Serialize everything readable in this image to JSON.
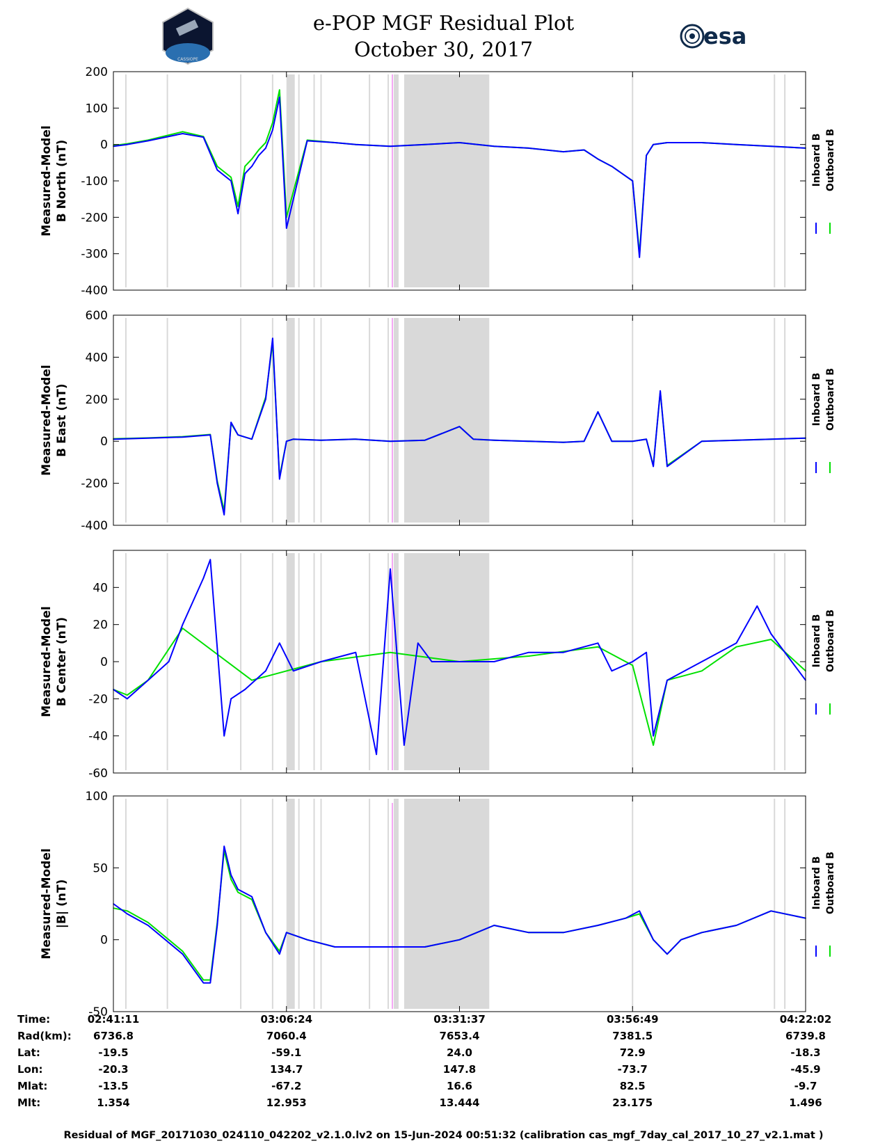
{
  "header": {
    "title_line1": "e-POP MGF Residual Plot",
    "title_line2": "October 30, 2017",
    "esa_logo_text": "esa",
    "cassiope_logo_text": "CASSIOPE"
  },
  "colors": {
    "inboard": "#0000ff",
    "outboard": "#00e000",
    "gap_band": "#d9d9d9",
    "marker": "#f4a8f4"
  },
  "legend": {
    "inboard": "Inboard B",
    "outboard": "Outboard B"
  },
  "chart_data": [
    {
      "type": "line",
      "ylabel_line1": "Measured-Model",
      "ylabel_line2": "B North (nT)",
      "ylim": [
        -400,
        200
      ],
      "yticks": [
        200,
        100,
        0,
        -100,
        -200,
        -300,
        -400
      ],
      "series": [
        {
          "name": "Inboard B",
          "x": [
            0,
            2,
            5,
            10,
            13,
            15,
            17,
            18,
            19,
            20,
            21,
            22,
            23,
            24,
            25,
            28,
            32,
            35,
            40,
            45,
            50,
            55,
            60,
            65,
            68,
            70,
            72,
            75,
            76,
            77,
            78,
            80,
            85,
            90,
            95,
            100
          ],
          "y": [
            -5,
            0,
            10,
            30,
            20,
            -70,
            -100,
            -190,
            -80,
            -60,
            -30,
            -10,
            40,
            130,
            -230,
            10,
            5,
            0,
            -5,
            0,
            5,
            -5,
            -10,
            -20,
            -15,
            -40,
            -60,
            -100,
            -310,
            -30,
            0,
            5,
            5,
            0,
            -5,
            -10
          ]
        },
        {
          "name": "Outboard B",
          "x": [
            0,
            2,
            5,
            10,
            13,
            15,
            17,
            18,
            19,
            20,
            21,
            22,
            23,
            24,
            25,
            28,
            32,
            35,
            40,
            45,
            50,
            55,
            60,
            65,
            68,
            70,
            72,
            75,
            76,
            77,
            78,
            80,
            85,
            90,
            95,
            100
          ],
          "y": [
            -3,
            2,
            12,
            35,
            22,
            -60,
            -90,
            -170,
            -60,
            -40,
            -15,
            5,
            60,
            150,
            -200,
            12,
            5,
            0,
            -5,
            0,
            5,
            -5,
            -10,
            -20,
            -15,
            -40,
            -60,
            -100,
            -300,
            -30,
            0,
            5,
            5,
            0,
            -5,
            -10
          ]
        }
      ]
    },
    {
      "type": "line",
      "ylabel_line1": "Measured-Model",
      "ylabel_line2": "B East (nT)",
      "ylim": [
        -400,
        600
      ],
      "yticks": [
        600,
        400,
        200,
        0,
        -200,
        -400
      ],
      "series": [
        {
          "name": "Inboard B",
          "x": [
            0,
            5,
            10,
            14,
            15,
            16,
            17,
            18,
            19,
            20,
            22,
            23,
            24,
            25,
            26,
            30,
            35,
            40,
            45,
            50,
            52,
            55,
            60,
            65,
            68,
            70,
            72,
            75,
            77,
            78,
            79,
            80,
            85,
            90,
            95,
            100
          ],
          "y": [
            10,
            15,
            20,
            30,
            -200,
            -350,
            90,
            30,
            20,
            10,
            200,
            490,
            -180,
            0,
            10,
            5,
            10,
            0,
            5,
            70,
            10,
            5,
            0,
            -5,
            0,
            140,
            0,
            0,
            10,
            -120,
            240,
            -120,
            0,
            5,
            10,
            15
          ]
        },
        {
          "name": "Outboard B",
          "x": [
            0,
            5,
            10,
            14,
            15,
            16,
            17,
            18,
            19,
            20,
            22,
            23,
            24,
            25,
            26,
            30,
            35,
            40,
            45,
            50,
            52,
            55,
            60,
            65,
            68,
            70,
            72,
            75,
            77,
            78,
            79,
            80,
            85,
            90,
            95,
            100
          ],
          "y": [
            12,
            16,
            22,
            32,
            -190,
            -330,
            85,
            30,
            20,
            10,
            210,
            470,
            -170,
            0,
            10,
            5,
            10,
            0,
            5,
            70,
            10,
            5,
            0,
            -5,
            0,
            140,
            0,
            0,
            10,
            -115,
            235,
            -115,
            0,
            5,
            10,
            15
          ]
        }
      ]
    },
    {
      "type": "line",
      "ylabel_line1": "Measured-Model",
      "ylabel_line2": "B Center (nT)",
      "ylim": [
        -60,
        60
      ],
      "yticks": [
        40,
        20,
        0,
        -20,
        -40,
        -60
      ],
      "series": [
        {
          "name": "Inboard B",
          "x": [
            0,
            2,
            5,
            8,
            10,
            13,
            14,
            16,
            17,
            19,
            22,
            24,
            26,
            30,
            35,
            38,
            40,
            42,
            44,
            46,
            50,
            55,
            60,
            65,
            70,
            72,
            75,
            77,
            78,
            80,
            85,
            90,
            93,
            95,
            98,
            100
          ],
          "y": [
            -15,
            -20,
            -10,
            0,
            20,
            45,
            55,
            -40,
            -20,
            -15,
            -5,
            10,
            -5,
            0,
            5,
            -50,
            50,
            -45,
            10,
            0,
            0,
            0,
            5,
            5,
            10,
            -5,
            0,
            5,
            -40,
            -10,
            0,
            10,
            30,
            15,
            0,
            -10
          ]
        },
        {
          "name": "Outboard B",
          "x": [
            0,
            2,
            5,
            10,
            20,
            30,
            40,
            50,
            60,
            70,
            75,
            78,
            80,
            85,
            90,
            95,
            100
          ],
          "y": [
            -15,
            -18,
            -10,
            18,
            -10,
            0,
            5,
            0,
            3,
            8,
            -2,
            -45,
            -10,
            -5,
            8,
            12,
            -5
          ]
        }
      ]
    },
    {
      "type": "line",
      "ylabel_line1": "Measured-Model",
      "ylabel_line2": "|B| (nT)",
      "ylim": [
        -50,
        100
      ],
      "yticks": [
        100,
        50,
        0,
        -50
      ],
      "series": [
        {
          "name": "Inboard B",
          "x": [
            0,
            2,
            5,
            10,
            13,
            14,
            15,
            16,
            17,
            18,
            20,
            22,
            24,
            25,
            28,
            32,
            35,
            40,
            45,
            50,
            55,
            60,
            65,
            70,
            74,
            76,
            78,
            80,
            82,
            85,
            90,
            95,
            100
          ],
          "y": [
            25,
            18,
            10,
            -10,
            -30,
            -30,
            10,
            65,
            45,
            35,
            30,
            5,
            -10,
            5,
            0,
            -5,
            -5,
            -5,
            -5,
            0,
            10,
            5,
            5,
            10,
            15,
            20,
            0,
            -10,
            0,
            5,
            10,
            20,
            15
          ]
        },
        {
          "name": "Outboard B",
          "x": [
            0,
            2,
            5,
            10,
            13,
            14,
            15,
            16,
            17,
            18,
            20,
            22,
            24,
            25,
            28,
            32,
            35,
            40,
            45,
            50,
            55,
            60,
            65,
            70,
            74,
            76,
            78,
            80,
            82,
            85,
            90,
            95,
            100
          ],
          "y": [
            22,
            20,
            12,
            -8,
            -28,
            -28,
            12,
            62,
            42,
            33,
            28,
            5,
            -8,
            5,
            0,
            -5,
            -5,
            -5,
            -5,
            0,
            10,
            5,
            5,
            10,
            15,
            18,
            0,
            -10,
            0,
            5,
            10,
            20,
            15
          ]
        }
      ]
    }
  ],
  "gap_bands": [
    {
      "start": 25.0,
      "end": 26.2
    },
    {
      "start": 40.5,
      "end": 41.2
    },
    {
      "start": 42.0,
      "end": 54.3
    }
  ],
  "gap_lines": [
    1.8,
    7.8,
    18.4,
    23.0,
    26.8,
    29.0,
    30.0,
    37.0,
    39.7,
    42.5,
    44.5,
    47.5,
    49.7,
    75.0,
    95.5,
    97.0
  ],
  "marker_line": 40.3,
  "time_axis": {
    "row_labels": [
      "Time:",
      "Rad(km):",
      "Lat:",
      "Lon:",
      "Mlat:",
      "Mlt:"
    ],
    "columns": [
      {
        "values": [
          "02:41:11",
          "6736.8",
          "-19.5",
          "-20.3",
          "-13.5",
          "1.354"
        ]
      },
      {
        "values": [
          "03:06:24",
          "7060.4",
          "-59.1",
          "134.7",
          "-67.2",
          "12.953"
        ]
      },
      {
        "values": [
          "03:31:37",
          "7653.4",
          "24.0",
          "147.8",
          "16.6",
          "13.444"
        ]
      },
      {
        "values": [
          "03:56:49",
          "7381.5",
          "72.9",
          "-73.7",
          "82.5",
          "23.175"
        ]
      },
      {
        "values": [
          "04:22:02",
          "6739.8",
          "-18.3",
          "-45.9",
          "-9.7",
          "1.496"
        ]
      }
    ],
    "tick_positions": [
      0,
      25,
      50,
      75,
      100
    ]
  },
  "footer": "Residual of MGF_20171030_024110_042202_v2.1.0.lv2 on 15-Jun-2024 00:51:32 (calibration cas_mgf_7day_cal_2017_10_27_v2.1.mat )"
}
